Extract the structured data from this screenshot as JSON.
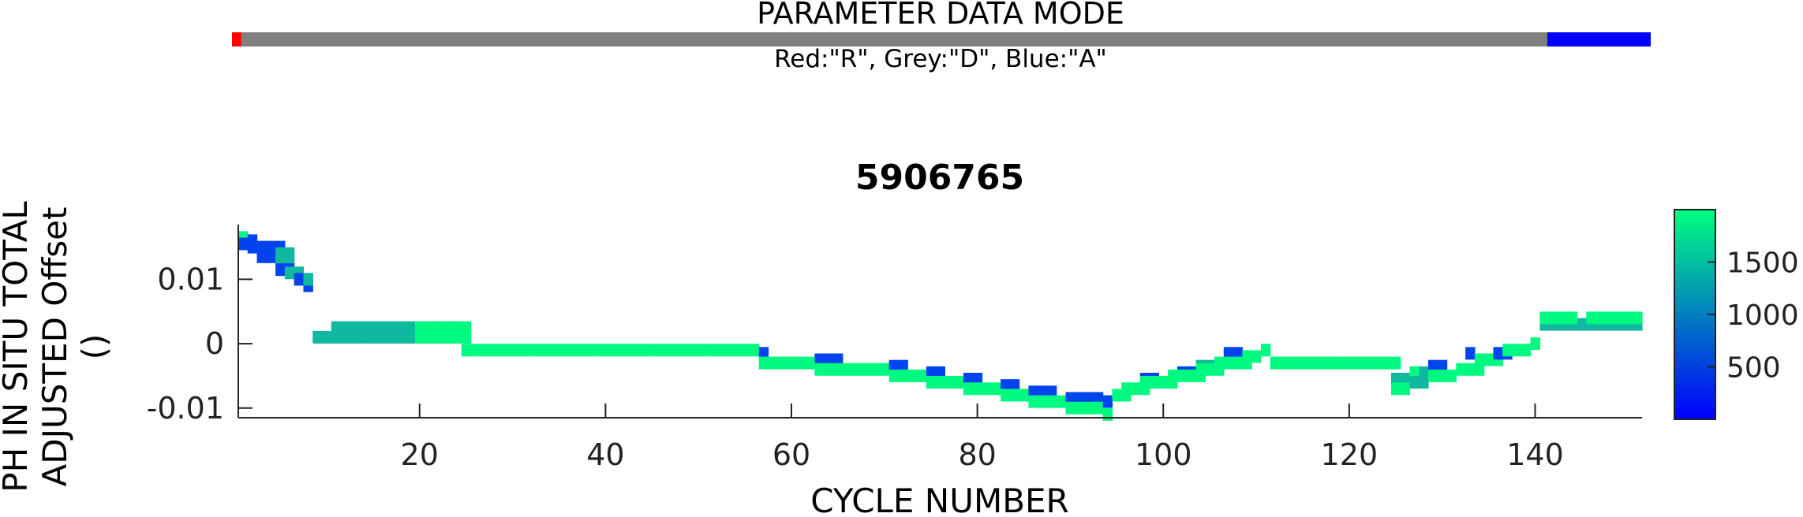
{
  "mode_bar": {
    "title": "PARAMETER DATA MODE",
    "legend": "Red:\"R\", Grey:\"D\", Blue:\"A\"",
    "segments": [
      {
        "mode": "R",
        "color": "#ff0000",
        "from_cycle": 0.5,
        "to_cycle": 1.5
      },
      {
        "mode": "D",
        "color": "#808080",
        "from_cycle": 1.5,
        "to_cycle": 140.5
      },
      {
        "mode": "A",
        "color": "#0000ff",
        "from_cycle": 140.5,
        "to_cycle": 151.5
      }
    ]
  },
  "chart_data": {
    "type": "heatmap",
    "title": "5906765",
    "xlabel": "CYCLE NUMBER",
    "ylabel": [
      "PH IN SITU TOTAL",
      "ADJUSTED Offset",
      "()"
    ],
    "xlim": [
      0.5,
      151.5
    ],
    "ylim": [
      -0.0115,
      0.0185
    ],
    "xticks": [
      20,
      40,
      60,
      80,
      100,
      120,
      140
    ],
    "yticks": [
      0.01,
      0,
      -0.01
    ],
    "ytick_labels": [
      "0.01",
      "0",
      "-0.01"
    ],
    "grid": false,
    "colorbar": {
      "range": [
        1,
        2000
      ],
      "ticks": [
        500,
        1000,
        1500
      ],
      "tick_labels": [
        "500",
        "1000",
        "1500"
      ],
      "colors": [
        "#0000ff",
        "#00ff80"
      ],
      "colormap": "winter"
    },
    "color_key": {
      "deep": "#00fa80",
      "mid": "#10b8a0",
      "shallow": "#0044ee"
    },
    "segments": [
      {
        "x": [
          1,
          1
        ],
        "y": 0.0165,
        "color": "deep"
      },
      {
        "x": [
          1,
          1
        ],
        "y": 0.0155,
        "color": "shallow"
      },
      {
        "x": [
          2,
          2
        ],
        "y": 0.016,
        "color": "shallow"
      },
      {
        "x": [
          2,
          2
        ],
        "y": 0.015,
        "color": "shallow"
      },
      {
        "x": [
          3,
          5
        ],
        "y": 0.0135,
        "color": "shallow"
      },
      {
        "x": [
          3,
          5
        ],
        "y": 0.015,
        "color": "shallow"
      },
      {
        "x": [
          5,
          6
        ],
        "y": 0.014,
        "color": "mid"
      },
      {
        "x": [
          5,
          6
        ],
        "y": 0.0125,
        "color": "mid"
      },
      {
        "x": [
          5,
          6
        ],
        "y": 0.0115,
        "color": "shallow"
      },
      {
        "x": [
          6,
          7
        ],
        "y": 0.011,
        "color": "mid"
      },
      {
        "x": [
          7,
          8
        ],
        "y": 0.01,
        "color": "shallow"
      },
      {
        "x": [
          8,
          8
        ],
        "y": 0.009,
        "color": "shallow"
      },
      {
        "x": [
          8,
          8
        ],
        "y": 0.01,
        "color": "mid"
      },
      {
        "x": [
          9,
          25
        ],
        "y": 0.001,
        "color": "mid"
      },
      {
        "x": [
          11,
          12
        ],
        "y": 0.0025,
        "color": "mid"
      },
      {
        "x": [
          13,
          15
        ],
        "y": 0.0025,
        "color": "mid"
      },
      {
        "x": [
          16,
          19
        ],
        "y": 0.0025,
        "color": "mid"
      },
      {
        "x": [
          20,
          25
        ],
        "y": 0.0025,
        "color": "deep"
      },
      {
        "x": [
          20,
          25
        ],
        "y": 0.001,
        "color": "deep"
      },
      {
        "x": [
          25,
          56
        ],
        "y": -0.001,
        "color": "deep"
      },
      {
        "x": [
          57,
          57
        ],
        "y": -0.0015,
        "color": "shallow"
      },
      {
        "x": [
          57,
          63
        ],
        "y": -0.003,
        "color": "deep"
      },
      {
        "x": [
          63,
          65
        ],
        "y": -0.0025,
        "color": "shallow"
      },
      {
        "x": [
          63,
          70
        ],
        "y": -0.004,
        "color": "deep"
      },
      {
        "x": [
          71,
          72
        ],
        "y": -0.0035,
        "color": "shallow"
      },
      {
        "x": [
          71,
          74
        ],
        "y": -0.005,
        "color": "deep"
      },
      {
        "x": [
          75,
          76
        ],
        "y": -0.0045,
        "color": "shallow"
      },
      {
        "x": [
          75,
          78
        ],
        "y": -0.006,
        "color": "deep"
      },
      {
        "x": [
          79,
          80
        ],
        "y": -0.0055,
        "color": "shallow"
      },
      {
        "x": [
          79,
          82
        ],
        "y": -0.007,
        "color": "deep"
      },
      {
        "x": [
          83,
          84
        ],
        "y": -0.0065,
        "color": "shallow"
      },
      {
        "x": [
          83,
          85
        ],
        "y": -0.008,
        "color": "deep"
      },
      {
        "x": [
          86,
          88
        ],
        "y": -0.0075,
        "color": "shallow"
      },
      {
        "x": [
          86,
          89
        ],
        "y": -0.009,
        "color": "deep"
      },
      {
        "x": [
          90,
          93
        ],
        "y": -0.0085,
        "color": "shallow"
      },
      {
        "x": [
          90,
          93
        ],
        "y": -0.01,
        "color": "deep"
      },
      {
        "x": [
          94,
          94
        ],
        "y": -0.009,
        "color": "shallow"
      },
      {
        "x": [
          94,
          94
        ],
        "y": -0.011,
        "color": "deep"
      },
      {
        "x": [
          95,
          96
        ],
        "y": -0.008,
        "color": "deep"
      },
      {
        "x": [
          96,
          98
        ],
        "y": -0.007,
        "color": "deep"
      },
      {
        "x": [
          98,
          99
        ],
        "y": -0.0055,
        "color": "shallow"
      },
      {
        "x": [
          98,
          101
        ],
        "y": -0.006,
        "color": "deep"
      },
      {
        "x": [
          102,
          104
        ],
        "y": -0.0045,
        "color": "shallow"
      },
      {
        "x": [
          101,
          104
        ],
        "y": -0.005,
        "color": "deep"
      },
      {
        "x": [
          104,
          106
        ],
        "y": -0.0035,
        "color": "mid"
      },
      {
        "x": [
          104,
          106
        ],
        "y": -0.004,
        "color": "deep"
      },
      {
        "x": [
          107,
          108
        ],
        "y": -0.0015,
        "color": "shallow"
      },
      {
        "x": [
          106,
          109
        ],
        "y": -0.003,
        "color": "deep"
      },
      {
        "x": [
          109,
          110
        ],
        "y": -0.002,
        "color": "deep"
      },
      {
        "x": [
          111,
          111
        ],
        "y": -0.001,
        "color": "deep"
      },
      {
        "x": [
          112,
          125
        ],
        "y": -0.003,
        "color": "deep"
      },
      {
        "x": [
          125,
          126
        ],
        "y": -0.0055,
        "color": "mid"
      },
      {
        "x": [
          125,
          126
        ],
        "y": -0.007,
        "color": "deep"
      },
      {
        "x": [
          127,
          127
        ],
        "y": -0.0045,
        "color": "deep"
      },
      {
        "x": [
          128,
          128
        ],
        "y": -0.0045,
        "color": "mid"
      },
      {
        "x": [
          127,
          128
        ],
        "y": -0.006,
        "color": "mid"
      },
      {
        "x": [
          129,
          130
        ],
        "y": -0.0035,
        "color": "shallow"
      },
      {
        "x": [
          129,
          131
        ],
        "y": -0.005,
        "color": "deep"
      },
      {
        "x": [
          132,
          134
        ],
        "y": -0.004,
        "color": "deep"
      },
      {
        "x": [
          133,
          133
        ],
        "y": -0.0015,
        "color": "shallow"
      },
      {
        "x": [
          134,
          136
        ],
        "y": -0.0025,
        "color": "deep"
      },
      {
        "x": [
          136,
          137
        ],
        "y": -0.0015,
        "color": "shallow"
      },
      {
        "x": [
          137,
          139
        ],
        "y": -0.001,
        "color": "deep"
      },
      {
        "x": [
          140,
          140
        ],
        "y": 0.0,
        "color": "deep"
      },
      {
        "x": [
          141,
          151
        ],
        "y": 0.003,
        "color": "mid"
      },
      {
        "x": [
          141,
          144
        ],
        "y": 0.004,
        "color": "deep"
      },
      {
        "x": [
          146,
          151
        ],
        "y": 0.004,
        "color": "deep"
      }
    ]
  }
}
